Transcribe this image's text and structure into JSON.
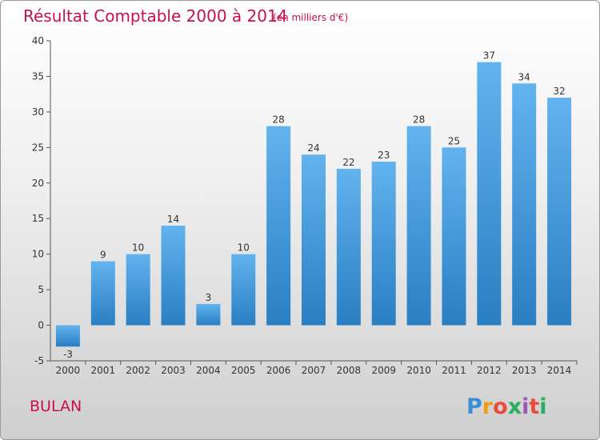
{
  "chart_data": {
    "type": "bar",
    "title": "Résultat Comptable 2000 à 2014",
    "subtitle": "(en milliers d'€)",
    "categories": [
      "2000",
      "2001",
      "2002",
      "2003",
      "2004",
      "2005",
      "2006",
      "2007",
      "2008",
      "2009",
      "2010",
      "2011",
      "2012",
      "2013",
      "2014"
    ],
    "values": [
      -3,
      9,
      10,
      14,
      3,
      10,
      28,
      24,
      22,
      23,
      28,
      25,
      37,
      34,
      32
    ],
    "ylim": [
      -5,
      40
    ],
    "yticks": [
      -5,
      0,
      5,
      10,
      15,
      20,
      25,
      30,
      35,
      40
    ],
    "xlabel": "",
    "ylabel": "",
    "grid": false
  },
  "location": "BULAN",
  "logo": {
    "letters": [
      "P",
      "r",
      "o",
      "x",
      "i",
      "t",
      "i"
    ],
    "colors": [
      "#3a8fd6",
      "#f39c12",
      "#e74c3c",
      "#27ae60",
      "#9b59b6",
      "#e74c3c",
      "#27ae60"
    ]
  },
  "colors": {
    "bar_top": "#62b3ee",
    "bar_bottom": "#2a7ec2",
    "title": "#c8104a"
  }
}
